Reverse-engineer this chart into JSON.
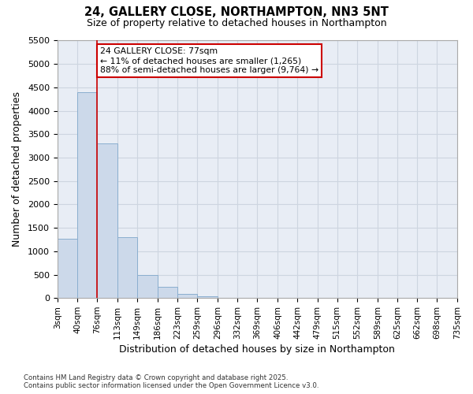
{
  "title1": "24, GALLERY CLOSE, NORTHAMPTON, NN3 5NT",
  "title2": "Size of property relative to detached houses in Northampton",
  "xlabel": "Distribution of detached houses by size in Northampton",
  "ylabel": "Number of detached properties",
  "bins": [
    3,
    40,
    76,
    113,
    149,
    186,
    223,
    259,
    296,
    332,
    369,
    406,
    442,
    479,
    515,
    552,
    589,
    625,
    662,
    698,
    735
  ],
  "bin_labels": [
    "3sqm",
    "40sqm",
    "76sqm",
    "113sqm",
    "149sqm",
    "186sqm",
    "223sqm",
    "259sqm",
    "296sqm",
    "332sqm",
    "369sqm",
    "406sqm",
    "442sqm",
    "479sqm",
    "515sqm",
    "552sqm",
    "589sqm",
    "625sqm",
    "662sqm",
    "698sqm",
    "735sqm"
  ],
  "values": [
    1265,
    4400,
    3300,
    1300,
    500,
    240,
    90,
    40,
    10,
    5,
    0,
    0,
    0,
    0,
    0,
    0,
    0,
    0,
    0,
    0
  ],
  "bar_color": "#ccd9ea",
  "bar_edge_color": "#8aaecf",
  "property_line_x": 76,
  "property_line_color": "#cc0000",
  "annotation_text": "24 GALLERY CLOSE: 77sqm\n← 11% of detached houses are smaller (1,265)\n88% of semi-detached houses are larger (9,764) →",
  "annotation_box_color": "#cc0000",
  "ylim": [
    0,
    5500
  ],
  "yticks": [
    0,
    500,
    1000,
    1500,
    2000,
    2500,
    3000,
    3500,
    4000,
    4500,
    5000,
    5500
  ],
  "grid_color": "#cdd5e0",
  "background_color": "#e8edf5",
  "footer1": "Contains HM Land Registry data © Crown copyright and database right 2025.",
  "footer2": "Contains public sector information licensed under the Open Government Licence v3.0."
}
